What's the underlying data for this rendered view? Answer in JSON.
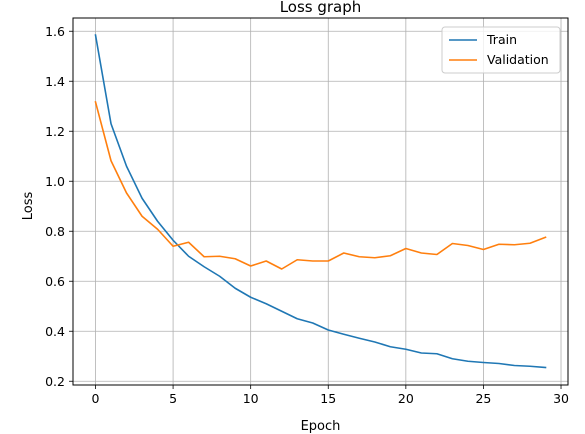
{
  "chart_data": {
    "type": "line",
    "title": "Loss graph",
    "xlabel": "Epoch",
    "ylabel": "Loss",
    "xlim": [
      -1.45,
      30.45
    ],
    "ylim": [
      0.185,
      1.653
    ],
    "xticks": [
      0,
      5,
      10,
      15,
      20,
      25,
      30
    ],
    "yticks": [
      0.2,
      0.4,
      0.6,
      0.8,
      1.0,
      1.2,
      1.4,
      1.6
    ],
    "ytick_labels": [
      "0.2",
      "0.4",
      "0.6",
      "0.8",
      "1.0",
      "1.2",
      "1.4",
      "1.6"
    ],
    "grid": true,
    "legend_position": "top-right",
    "x": [
      0,
      1,
      2,
      3,
      4,
      5,
      6,
      7,
      8,
      9,
      10,
      11,
      12,
      13,
      14,
      15,
      16,
      17,
      18,
      19,
      20,
      21,
      22,
      23,
      24,
      25,
      26,
      27,
      28,
      29
    ],
    "series": [
      {
        "name": "Train",
        "color": "#1f77b4",
        "values": [
          1.585,
          1.23,
          1.06,
          0.932,
          0.84,
          0.764,
          0.7,
          0.658,
          0.62,
          0.572,
          0.536,
          0.51,
          0.48,
          0.45,
          0.433,
          0.405,
          0.388,
          0.372,
          0.357,
          0.338,
          0.328,
          0.313,
          0.31,
          0.29,
          0.28,
          0.275,
          0.271,
          0.263,
          0.26,
          0.255
        ]
      },
      {
        "name": "Validation",
        "color": "#ff7f0e",
        "values": [
          1.317,
          1.082,
          0.953,
          0.86,
          0.808,
          0.74,
          0.756,
          0.698,
          0.7,
          0.69,
          0.661,
          0.681,
          0.649,
          0.686,
          0.681,
          0.681,
          0.713,
          0.698,
          0.694,
          0.702,
          0.731,
          0.713,
          0.707,
          0.751,
          0.743,
          0.727,
          0.748,
          0.746,
          0.752,
          0.776
        ]
      }
    ]
  }
}
